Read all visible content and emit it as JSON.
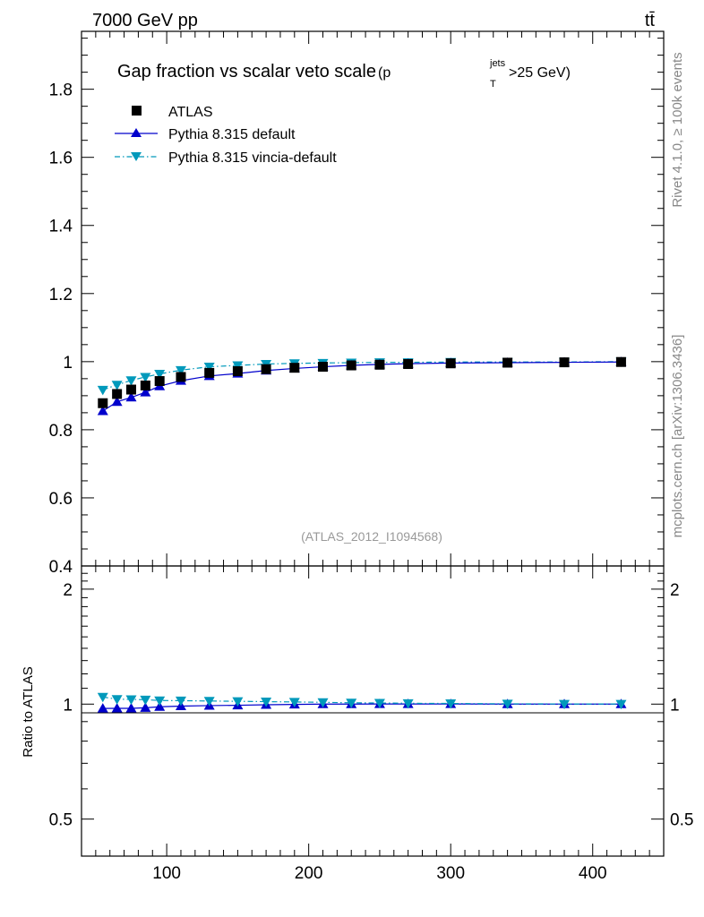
{
  "header": {
    "energy_label": "7000 GeV pp",
    "process_label": "tt̄"
  },
  "side_labels": {
    "rivet": "Rivet 4.1.0, ≥ 100k events",
    "mcplots": "mcplots.cern.ch [arXiv:1306.3436]"
  },
  "chart_data": [
    {
      "type": "scatter",
      "title_main": "Gap fraction vs scalar veto scale",
      "title_sub": "(p",
      "title_sup": "jets",
      "title_subscript": "T",
      "title_tail": ">25 GeV)",
      "watermark": "(ATLAS_2012_I1094568)",
      "xlim": [
        40,
        450
      ],
      "ylim": [
        0.4,
        1.97
      ],
      "x_ticks": [
        100,
        200,
        300,
        400
      ],
      "y_ticks": [
        0.4,
        0.6,
        0.8,
        1,
        1.2,
        1.4,
        1.6,
        1.8
      ],
      "y_tick_labels": [
        "0.4",
        "0.6",
        "0.8",
        "1",
        "1.2",
        "1.4",
        "1.6",
        "1.8"
      ],
      "x": [
        55,
        65,
        75,
        85,
        95,
        110,
        130,
        150,
        170,
        190,
        210,
        230,
        250,
        270,
        300,
        340,
        380,
        420
      ],
      "series": [
        {
          "name": "ATLAS",
          "color": "#000000",
          "marker": "square",
          "values": [
            0.878,
            0.905,
            0.918,
            0.93,
            0.943,
            0.955,
            0.967,
            0.972,
            0.978,
            0.982,
            0.985,
            0.989,
            0.991,
            0.993,
            0.995,
            0.997,
            0.998,
            0.999
          ]
        },
        {
          "name": "Pythia 8.315 default",
          "color": "#0000cc",
          "marker": "triangle-up",
          "line": "solid",
          "values": [
            0.855,
            0.882,
            0.895,
            0.91,
            0.928,
            0.944,
            0.958,
            0.965,
            0.974,
            0.98,
            0.985,
            0.989,
            0.992,
            0.994,
            0.996,
            0.997,
            0.998,
            0.999
          ]
        },
        {
          "name": "Pythia 8.315 vincia-default",
          "color": "#0099bb",
          "marker": "triangle-down",
          "line": "dashdot",
          "values": [
            0.917,
            0.932,
            0.945,
            0.955,
            0.964,
            0.975,
            0.985,
            0.989,
            0.993,
            0.995,
            0.996,
            0.997,
            0.998,
            0.998,
            0.999,
            0.999,
            0.999,
            1.0
          ]
        }
      ]
    },
    {
      "type": "scatter",
      "ylabel": "Ratio to ATLAS",
      "ylim": [
        0.4,
        2.3
      ],
      "y_log": true,
      "y_ticks": [
        0.5,
        1,
        2
      ],
      "y_tick_labels": [
        "0.5",
        "1",
        "2"
      ],
      "x_tick_labels": [
        "100",
        "200",
        "300",
        "400"
      ],
      "series": [
        {
          "name": "Pythia 8.315 default / ATLAS",
          "color": "#0000cc",
          "marker": "triangle-up",
          "line": "solid",
          "values": [
            0.974,
            0.975,
            0.975,
            0.978,
            0.984,
            0.988,
            0.991,
            0.993,
            0.996,
            0.998,
            1.0,
            1.0,
            1.001,
            1.001,
            1.001,
            1.0,
            1.0,
            1.0
          ]
        },
        {
          "name": "Pythia 8.315 vincia-default / ATLAS",
          "color": "#0099bb",
          "marker": "triangle-down",
          "line": "dashdot",
          "values": [
            1.044,
            1.03,
            1.029,
            1.027,
            1.022,
            1.021,
            1.019,
            1.017,
            1.015,
            1.013,
            1.011,
            1.008,
            1.007,
            1.005,
            1.004,
            1.002,
            1.001,
            1.001
          ]
        }
      ]
    }
  ]
}
